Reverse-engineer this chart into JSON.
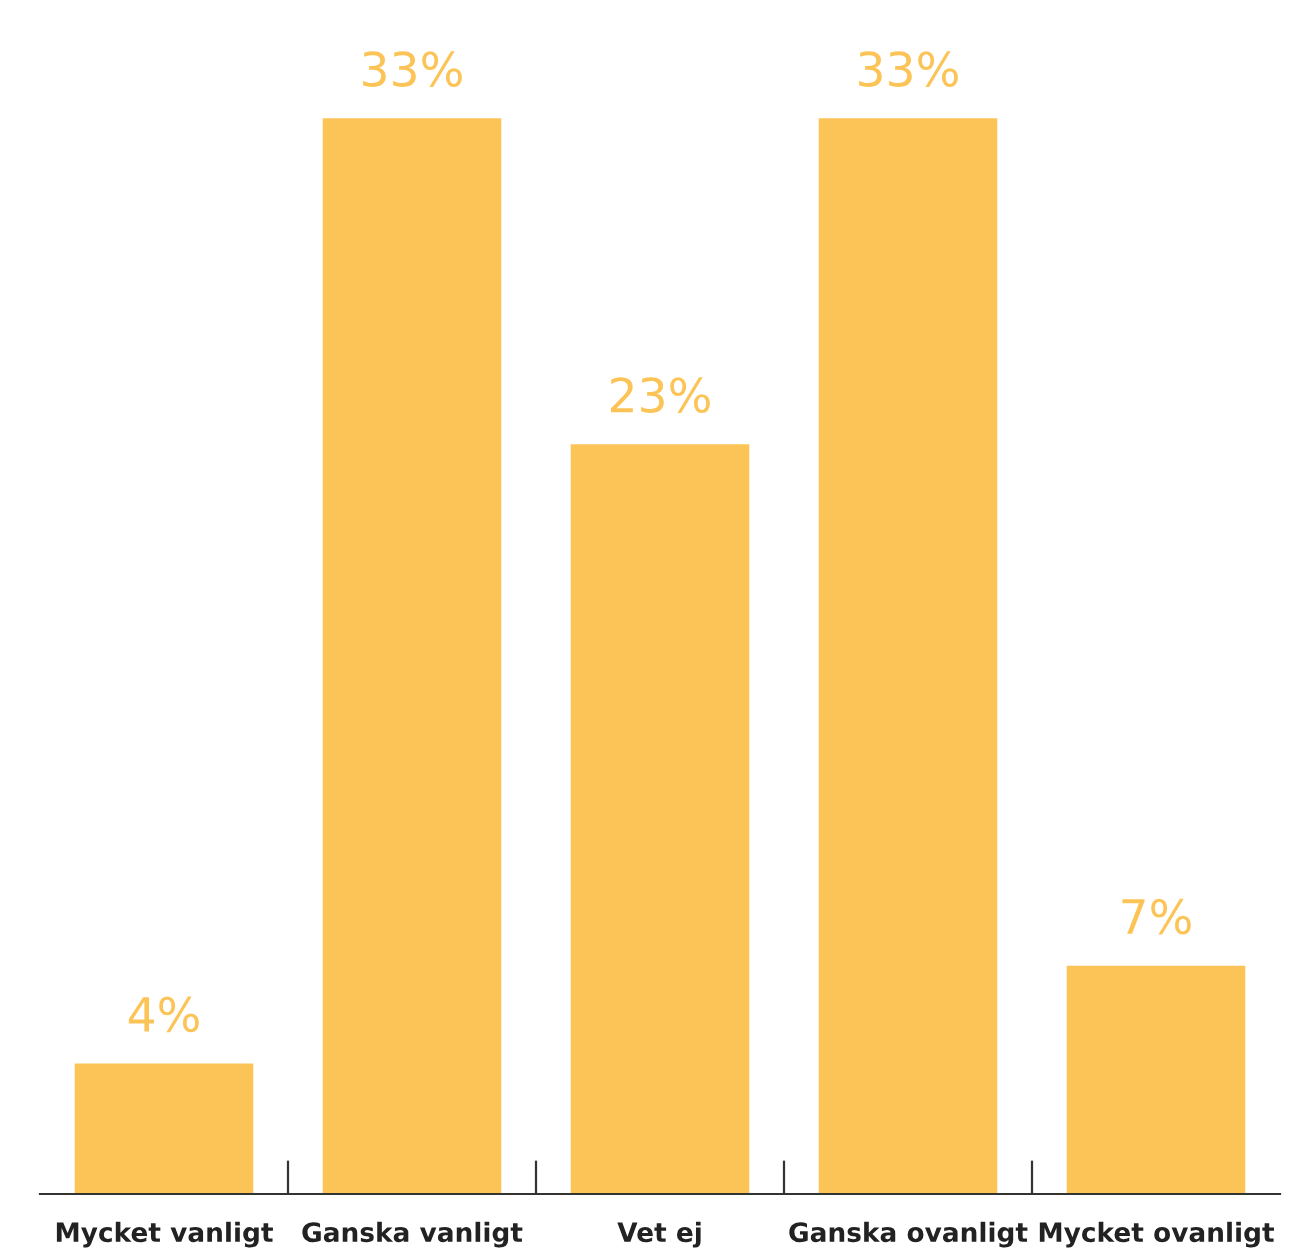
{
  "chart_data": {
    "type": "bar",
    "categories": [
      "Mycket vanligt",
      "Ganska vanligt",
      "Vet ej",
      "Ganska ovanligt",
      "Mycket ovanligt"
    ],
    "values": [
      4,
      33,
      23,
      33,
      7
    ],
    "value_labels": [
      "4%",
      "33%",
      "23%",
      "33%",
      "7%"
    ],
    "color": "#fcc456"
  }
}
